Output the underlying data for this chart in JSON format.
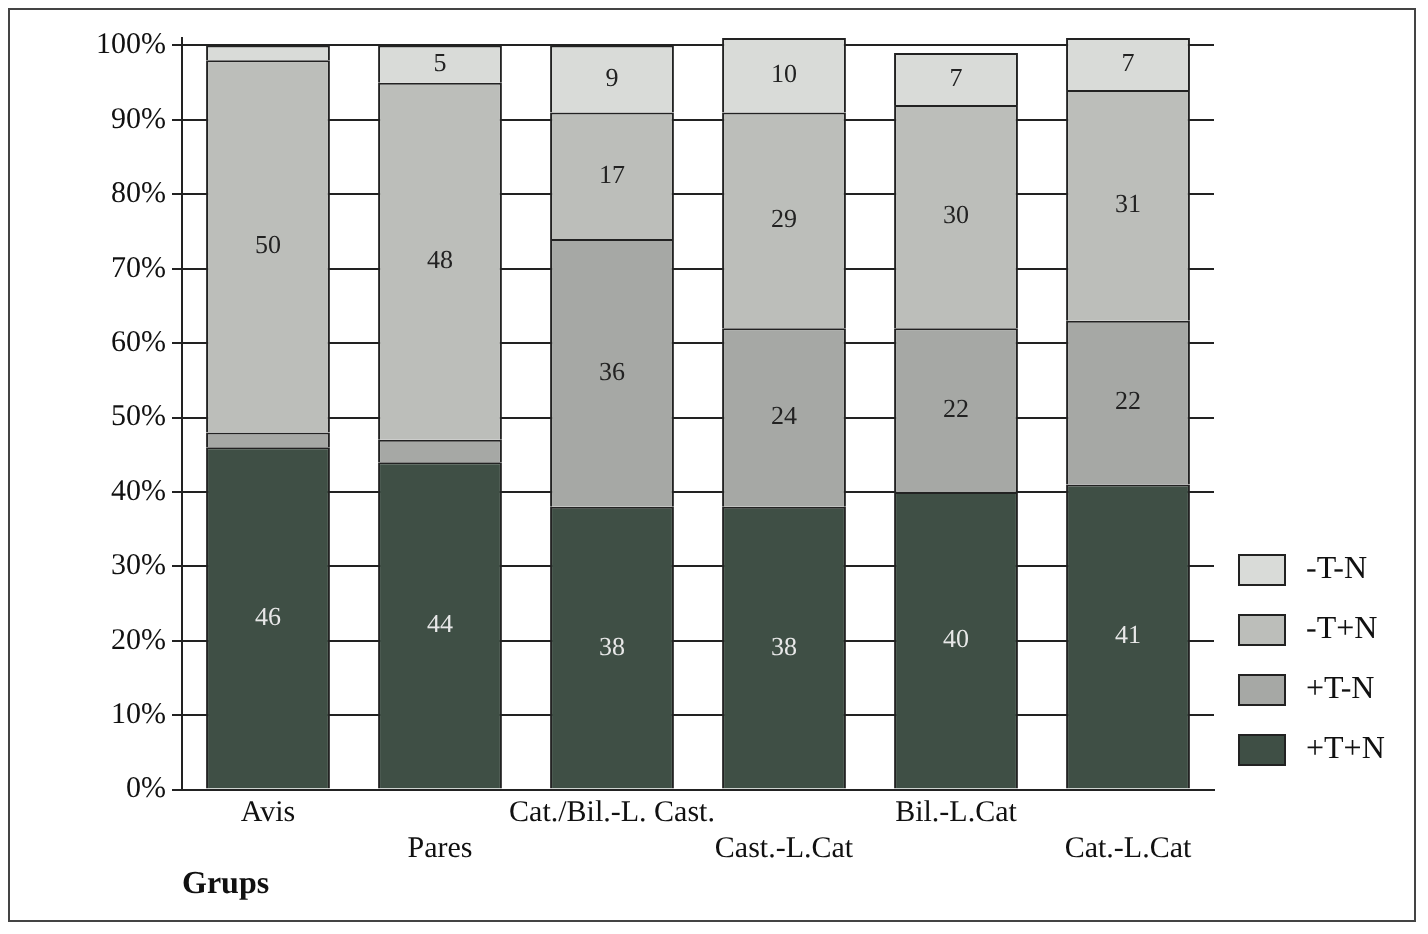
{
  "chart_data": {
    "type": "bar",
    "stacked": true,
    "xlabel": "Grups",
    "categories": [
      "Avis",
      "Pares",
      "Cat./Bil.-L. Cast.",
      "Cast.-L.Cat",
      "Bil.-L.Cat",
      "Cat.-L.Cat"
    ],
    "series": [
      {
        "name": "+T+N",
        "color": "#3f4f45",
        "values": [
          46,
          44,
          38,
          38,
          40,
          41
        ],
        "value_labels": [
          "46",
          "44",
          "38",
          "38",
          "40",
          "41"
        ]
      },
      {
        "name": "+T-N",
        "color": "#a6a8a5",
        "values": [
          2,
          3,
          36,
          24,
          22,
          22
        ],
        "value_labels": [
          null,
          null,
          "36",
          "24",
          "22",
          "22"
        ]
      },
      {
        "name": "-T+N",
        "color": "#bcbeba",
        "values": [
          50,
          48,
          17,
          29,
          30,
          31
        ],
        "value_labels": [
          "50",
          "48",
          "17",
          "29",
          "30",
          "31"
        ]
      },
      {
        "name": "-T-N",
        "color": "#d9dbd8",
        "values": [
          2,
          5,
          9,
          10,
          7,
          7
        ],
        "value_labels": [
          null,
          "5",
          "9",
          "10",
          "7",
          "7"
        ]
      }
    ],
    "ylim": [
      0,
      101
    ],
    "yticks": [
      {
        "value": 0,
        "label": "0%"
      },
      {
        "value": 10,
        "label": "10%"
      },
      {
        "value": 20,
        "label": "20%"
      },
      {
        "value": 30,
        "label": "30%"
      },
      {
        "value": 40,
        "label": "40%"
      },
      {
        "value": 50,
        "label": "50%"
      },
      {
        "value": 60,
        "label": "60%"
      },
      {
        "value": 70,
        "label": "70%"
      },
      {
        "value": 80,
        "label": "80%"
      },
      {
        "value": 90,
        "label": "90%"
      },
      {
        "value": 100,
        "label": "100%"
      }
    ],
    "grid": "y",
    "legend": "right"
  }
}
